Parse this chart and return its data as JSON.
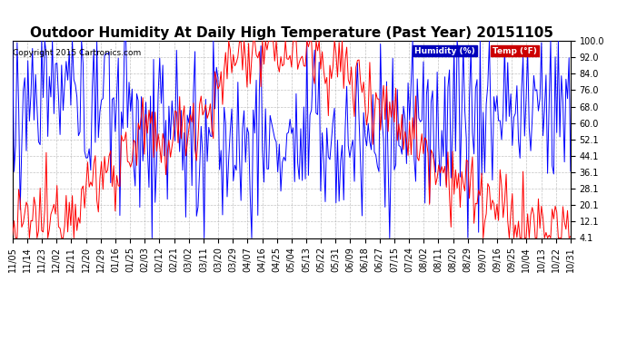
{
  "title": "Outdoor Humidity At Daily High Temperature (Past Year) 20151105",
  "copyright": "Copyright 2015 Cartronics.com",
  "legend_labels": [
    "Humidity (%)",
    "Temp (°F)"
  ],
  "legend_bg_colors": [
    "#0000bb",
    "#cc0000"
  ],
  "yticks": [
    4.1,
    12.1,
    20.1,
    28.1,
    36.1,
    44.1,
    52.1,
    60.0,
    68.0,
    76.0,
    84.0,
    92.0,
    100.0
  ],
  "ylim": [
    4.1,
    100.0
  ],
  "xtick_labels": [
    "11/05",
    "11/14",
    "11/23",
    "12/02",
    "12/11",
    "12/20",
    "12/29",
    "01/16",
    "01/25",
    "02/03",
    "02/12",
    "02/21",
    "03/02",
    "03/11",
    "03/20",
    "03/29",
    "04/07",
    "04/16",
    "04/25",
    "05/04",
    "05/13",
    "05/22",
    "05/31",
    "06/09",
    "06/18",
    "06/27",
    "07/15",
    "07/24",
    "08/02",
    "08/11",
    "08/20",
    "08/29",
    "09/07",
    "09/16",
    "09/25",
    "10/04",
    "10/13",
    "10/22",
    "10/31"
  ],
  "bg_color": "#ffffff",
  "grid_color": "#aaaaaa",
  "title_fontsize": 11,
  "tick_fontsize": 7,
  "humidity_color": "#0000ff",
  "temp_color": "#ff0000"
}
